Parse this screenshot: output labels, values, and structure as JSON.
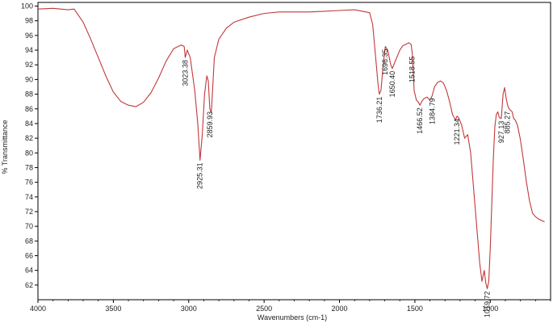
{
  "chart_data": {
    "type": "line",
    "xlabel": "Wavenumbers (cm-1)",
    "ylabel": "% Transmittance",
    "xlim": [
      4000,
      600
    ],
    "x_reversed": true,
    "ylim": [
      60,
      100.5
    ],
    "xticks": [
      4000,
      3500,
      3000,
      2500,
      2000,
      1500,
      1000
    ],
    "yticks": [
      62,
      64,
      66,
      68,
      70,
      72,
      74,
      76,
      78,
      80,
      82,
      84,
      86,
      88,
      90,
      92,
      94,
      96,
      98,
      100
    ],
    "grid": false,
    "line_color": "#c0393b",
    "series": [
      {
        "x": [
          4000,
          3900,
          3800,
          3760,
          3700,
          3650,
          3600,
          3550,
          3500,
          3450,
          3400,
          3350,
          3300,
          3250,
          3200,
          3150,
          3100,
          3050,
          3030,
          3023,
          3010,
          2990,
          2960,
          2940,
          2925,
          2910,
          2895,
          2880,
          2870,
          2860,
          2850,
          2830,
          2800,
          2750,
          2700,
          2600,
          2500,
          2400,
          2300,
          2200,
          2100,
          2000,
          1900,
          1800,
          1780,
          1760,
          1745,
          1736,
          1725,
          1710,
          1696,
          1680,
          1660,
          1650,
          1640,
          1620,
          1600,
          1580,
          1560,
          1540,
          1525,
          1517,
          1505,
          1490,
          1480,
          1466,
          1455,
          1440,
          1420,
          1400,
          1385,
          1370,
          1350,
          1330,
          1310,
          1290,
          1270,
          1250,
          1230,
          1221,
          1210,
          1190,
          1170,
          1150,
          1130,
          1110,
          1090,
          1070,
          1055,
          1040,
          1030,
          1020,
          1010,
          1000,
          990,
          980,
          970,
          960,
          950,
          940,
          927,
          915,
          905,
          895,
          885,
          875,
          865,
          855,
          845,
          835,
          820,
          800,
          780,
          760,
          740,
          720,
          700,
          680,
          660,
          640
        ],
        "y": [
          99.6,
          99.7,
          99.5,
          99.6,
          97.8,
          95.5,
          93.0,
          90.5,
          88.3,
          87.0,
          86.5,
          86.3,
          86.9,
          88.2,
          90.2,
          92.5,
          94.2,
          94.7,
          94.5,
          93.0,
          94.0,
          93.0,
          88.5,
          84.0,
          79.0,
          82.5,
          88.0,
          90.5,
          89.8,
          86.0,
          85.5,
          93.0,
          95.5,
          97.0,
          97.8,
          98.5,
          99.0,
          99.2,
          99.2,
          99.2,
          99.3,
          99.4,
          99.5,
          99.1,
          97.5,
          93.0,
          89.5,
          88.0,
          88.5,
          92.0,
          94.5,
          94.0,
          92.0,
          91.5,
          92.0,
          93.0,
          94.0,
          94.6,
          94.8,
          95.0,
          94.8,
          93.5,
          88.5,
          87.2,
          87.0,
          86.5,
          87.0,
          87.4,
          87.6,
          87.2,
          87.8,
          89.0,
          89.6,
          89.8,
          89.5,
          88.5,
          87.0,
          85.2,
          84.5,
          85.0,
          84.8,
          83.8,
          82.0,
          82.5,
          80.0,
          75.0,
          70.0,
          65.0,
          62.5,
          64.0,
          62.3,
          61.5,
          62.5,
          67.0,
          73.0,
          79.0,
          83.5,
          85.2,
          85.6,
          84.8,
          84.7,
          88.0,
          88.9,
          87.5,
          86.5,
          86.0,
          85.8,
          85.6,
          84.7,
          84.5,
          83.8,
          81.8,
          79.0,
          76.0,
          73.5,
          71.8,
          71.3,
          71.0,
          70.8,
          70.6
        ]
      }
    ],
    "annotations": [
      {
        "label": "3023.38",
        "x": 3023.38,
        "y": 93.0
      },
      {
        "label": "2925.31",
        "x": 2925.31,
        "y": 79.0
      },
      {
        "label": "2859.93",
        "x": 2859.93,
        "y": 86.0
      },
      {
        "label": "1736.21",
        "x": 1736.21,
        "y": 88.0
      },
      {
        "label": "1696.35",
        "x": 1696.35,
        "y": 94.5
      },
      {
        "label": "1650.40",
        "x": 1650.4,
        "y": 91.5
      },
      {
        "label": "1518.55",
        "x": 1518.55,
        "y": 93.5
      },
      {
        "label": "1466.52",
        "x": 1466.52,
        "y": 86.5
      },
      {
        "label": "1384.79",
        "x": 1384.79,
        "y": 87.8
      },
      {
        "label": "1221.34",
        "x": 1221.34,
        "y": 85.0
      },
      {
        "label": "927.13",
        "x": 927.13,
        "y": 84.7
      },
      {
        "label": "885.27",
        "x": 885.27,
        "y": 86.0
      },
      {
        "label": "1019.72",
        "x": 1019.72,
        "y": 61.5
      }
    ]
  }
}
